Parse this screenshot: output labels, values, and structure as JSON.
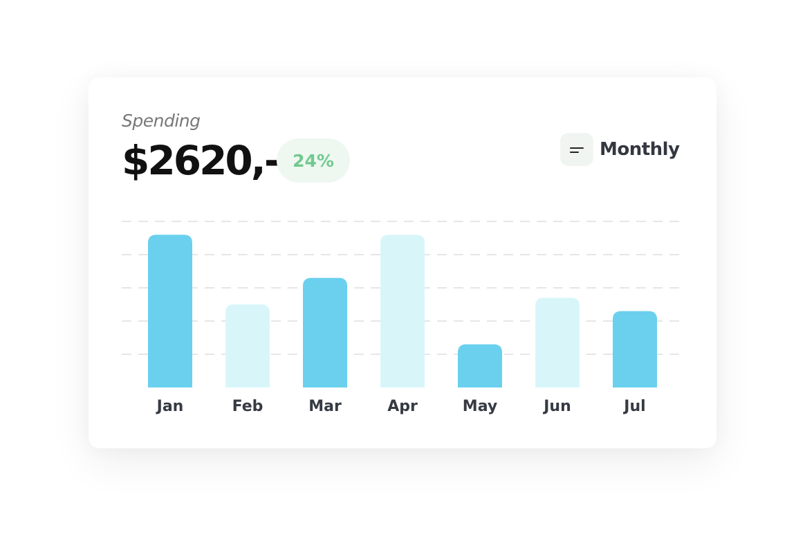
{
  "header": {
    "subtitle": "Spending",
    "amount": "$2620,-",
    "change_badge": "24%",
    "period_button": {
      "label": "Monthly",
      "icon": "filter-lines-icon"
    }
  },
  "colors": {
    "bar_highlight": "#6ad0ee",
    "bar_muted": "#d8f6fa",
    "badge_bg": "#eef8f1",
    "badge_text": "#72c98f",
    "gridline": "#dddddd"
  },
  "chart_data": {
    "type": "bar",
    "categories": [
      "Jan",
      "Feb",
      "Mar",
      "Apr",
      "May",
      "Jun",
      "Jul"
    ],
    "values": [
      4.6,
      2.5,
      3.3,
      4.6,
      1.3,
      2.7,
      2.3
    ],
    "highlighted": [
      true,
      false,
      true,
      false,
      true,
      false,
      true
    ],
    "ylim": [
      0,
      5
    ],
    "grid": true,
    "grid_style": "dashed horizontal",
    "y_axis_labels": false
  }
}
